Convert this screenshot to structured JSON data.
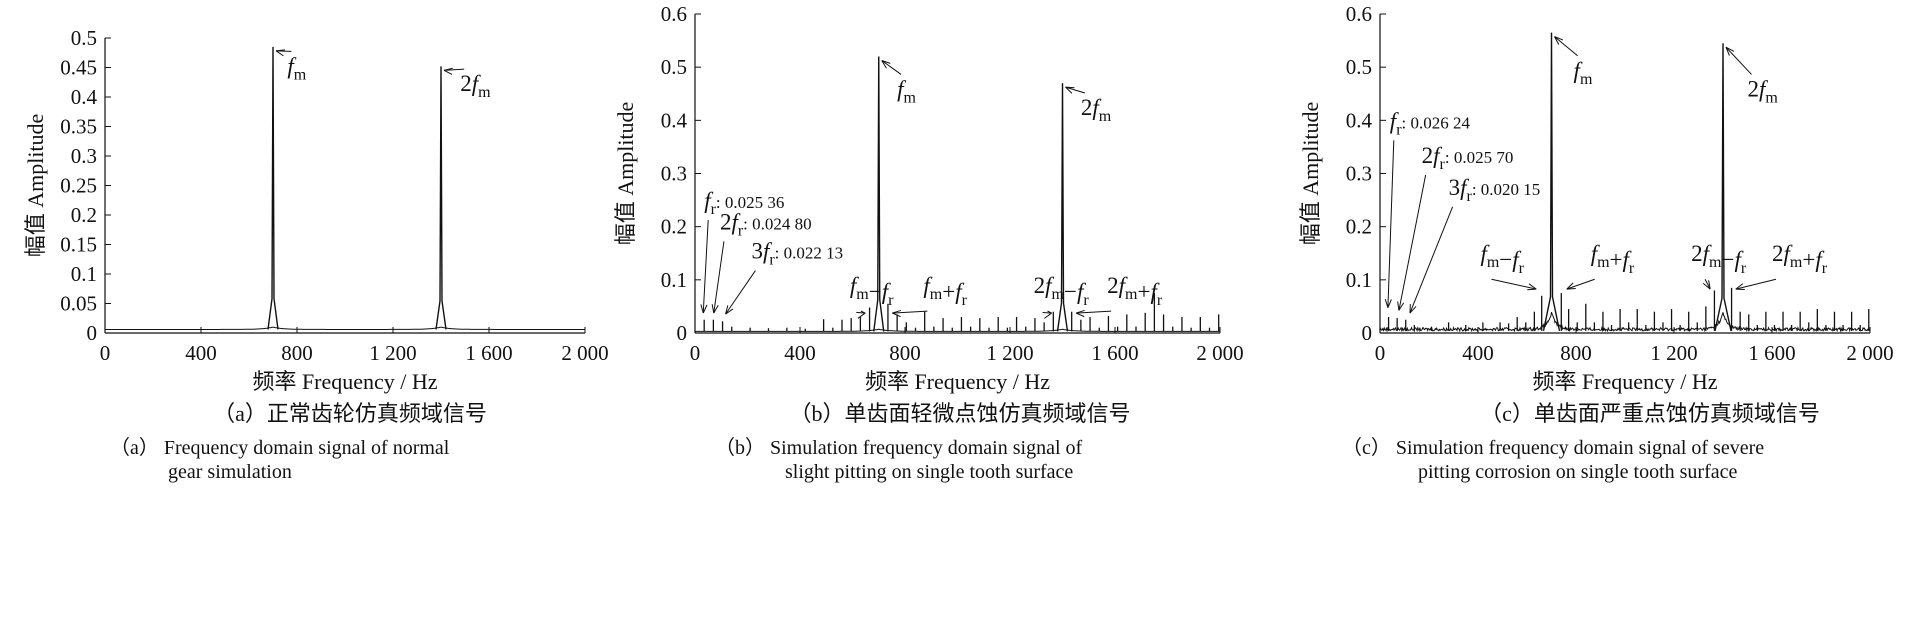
{
  "chart_data": [
    {
      "type": "line",
      "panel_label": "（a）",
      "caption_cn": "（a）正常齿轮仿真频域信号",
      "caption_en_line1": "（a） Frequency domain signal of normal",
      "caption_en_line2": "gear simulation",
      "xlabel": "频率 Frequency / Hz",
      "ylabel": "幅值 Amplitude",
      "xlim": [
        0,
        2000
      ],
      "ylim": [
        0,
        0.5
      ],
      "xticks": [
        0,
        400,
        800,
        1200,
        1600,
        2000
      ],
      "xtick_labels": [
        "0",
        "400",
        "800",
        "1 200",
        "1 600",
        "2 000"
      ],
      "yticks": [
        0,
        0.05,
        0.1,
        0.15,
        0.2,
        0.25,
        0.3,
        0.35,
        0.4,
        0.45,
        0.5
      ],
      "ytick_labels": [
        "0",
        "0.05",
        "0.1",
        "0.15",
        "0.2",
        "0.25",
        "0.3",
        "0.35",
        "0.4",
        "0.45",
        "0.5"
      ],
      "baseline": 0.006,
      "noise": 0.0,
      "main_peaks": [
        {
          "x": 700,
          "y": 0.485,
          "width": 5
        },
        {
          "x": 1400,
          "y": 0.452,
          "width": 5
        }
      ],
      "sidebands": [],
      "annotations": [
        {
          "text": "f",
          "sub": "m",
          "prefix": "",
          "value": "",
          "target_x": 700,
          "target_y": 0.485,
          "text_x": 760,
          "text_y": 0.44
        },
        {
          "text": "f",
          "sub": "m",
          "prefix": "2",
          "value": "",
          "target_x": 1400,
          "target_y": 0.452,
          "text_x": 1480,
          "text_y": 0.41
        }
      ]
    },
    {
      "type": "line",
      "panel_label": "（b）",
      "caption_cn": "（b）单齿面轻微点蚀仿真频域信号",
      "caption_en_line1": "（b） Simulation frequency domain signal of",
      "caption_en_line2": "slight pitting on single tooth surface",
      "xlabel": "频率 Frequency / Hz",
      "ylabel": "幅值 Amplitude",
      "xlim": [
        0,
        2000
      ],
      "ylim": [
        0,
        0.6
      ],
      "xticks": [
        0,
        400,
        800,
        1200,
        1600,
        2000
      ],
      "xtick_labels": [
        "0",
        "400",
        "800",
        "1 200",
        "1 600",
        "2 000"
      ],
      "yticks": [
        0,
        0.1,
        0.2,
        0.3,
        0.4,
        0.5,
        0.6
      ],
      "ytick_labels": [
        "0",
        "0.1",
        "0.2",
        "0.3",
        "0.4",
        "0.5",
        "0.6"
      ],
      "baseline": 0.003,
      "noise": 0.0,
      "main_peaks": [
        {
          "x": 700,
          "y": 0.52,
          "width": 5
        },
        {
          "x": 1400,
          "y": 0.47,
          "width": 5
        }
      ],
      "sidebands": [
        {
          "x": 35,
          "y": 0.025
        },
        {
          "x": 70,
          "y": 0.025
        },
        {
          "x": 105,
          "y": 0.022
        },
        {
          "x": 140,
          "y": 0.012
        },
        {
          "x": 210,
          "y": 0.01
        },
        {
          "x": 280,
          "y": 0.009
        },
        {
          "x": 350,
          "y": 0.01
        },
        {
          "x": 420,
          "y": 0.008
        },
        {
          "x": 490,
          "y": 0.026
        },
        {
          "x": 525,
          "y": 0.01
        },
        {
          "x": 560,
          "y": 0.025
        },
        {
          "x": 595,
          "y": 0.028
        },
        {
          "x": 630,
          "y": 0.03
        },
        {
          "x": 665,
          "y": 0.048
        },
        {
          "x": 735,
          "y": 0.055
        },
        {
          "x": 770,
          "y": 0.035
        },
        {
          "x": 805,
          "y": 0.02
        },
        {
          "x": 840,
          "y": 0.01
        },
        {
          "x": 875,
          "y": 0.04
        },
        {
          "x": 910,
          "y": 0.012
        },
        {
          "x": 945,
          "y": 0.028
        },
        {
          "x": 980,
          "y": 0.01
        },
        {
          "x": 1015,
          "y": 0.03
        },
        {
          "x": 1050,
          "y": 0.012
        },
        {
          "x": 1085,
          "y": 0.028
        },
        {
          "x": 1120,
          "y": 0.01
        },
        {
          "x": 1155,
          "y": 0.03
        },
        {
          "x": 1190,
          "y": 0.01
        },
        {
          "x": 1225,
          "y": 0.03
        },
        {
          "x": 1260,
          "y": 0.012
        },
        {
          "x": 1295,
          "y": 0.028
        },
        {
          "x": 1330,
          "y": 0.02
        },
        {
          "x": 1365,
          "y": 0.04
        },
        {
          "x": 1435,
          "y": 0.04
        },
        {
          "x": 1470,
          "y": 0.025
        },
        {
          "x": 1505,
          "y": 0.03
        },
        {
          "x": 1540,
          "y": 0.01
        },
        {
          "x": 1575,
          "y": 0.032
        },
        {
          "x": 1610,
          "y": 0.012
        },
        {
          "x": 1645,
          "y": 0.035
        },
        {
          "x": 1680,
          "y": 0.012
        },
        {
          "x": 1715,
          "y": 0.038
        },
        {
          "x": 1750,
          "y": 0.075
        },
        {
          "x": 1785,
          "y": 0.035
        },
        {
          "x": 1820,
          "y": 0.012
        },
        {
          "x": 1855,
          "y": 0.03
        },
        {
          "x": 1890,
          "y": 0.01
        },
        {
          "x": 1925,
          "y": 0.03
        },
        {
          "x": 1960,
          "y": 0.01
        },
        {
          "x": 1995,
          "y": 0.035
        }
      ],
      "annotations": [
        {
          "text": "f",
          "sub": "m",
          "prefix": "",
          "value": "",
          "target_x": 700,
          "target_y": 0.52,
          "text_x": 770,
          "text_y": 0.445
        },
        {
          "text": "f",
          "sub": "m",
          "prefix": "2",
          "value": "",
          "target_x": 1400,
          "target_y": 0.47,
          "text_x": 1470,
          "text_y": 0.41
        },
        {
          "text": "f",
          "sub": "r",
          "prefix": "",
          "value": ": 0.025 36",
          "target_x": 20,
          "target_y": 0.03,
          "text_x": 35,
          "text_y": 0.235
        },
        {
          "text": "f",
          "sub": "r",
          "prefix": "2",
          "value": ": 0.024 80",
          "target_x": 60,
          "target_y": 0.03,
          "text_x": 95,
          "text_y": 0.195
        },
        {
          "text": "f",
          "sub": "r",
          "prefix": "3",
          "value": ": 0.022 13",
          "target_x": 105,
          "target_y": 0.028,
          "text_x": 215,
          "text_y": 0.14
        },
        {
          "text": "",
          "sub": "",
          "prefix": "",
          "value": "",
          "label_parts": [
            [
              "f",
              "m"
            ],
            [
              "−f",
              "r"
            ]
          ],
          "target_x": 660,
          "target_y": 0.045,
          "text_x": 590,
          "text_y": 0.075
        },
        {
          "text": "",
          "sub": "",
          "prefix": "",
          "value": "",
          "label_parts": [
            [
              "f",
              "m"
            ],
            [
              "+f",
              "r"
            ]
          ],
          "target_x": 740,
          "target_y": 0.045,
          "text_x": 870,
          "text_y": 0.075
        },
        {
          "text": "",
          "sub": "",
          "prefix": "",
          "value": "",
          "label_parts": [
            [
              "2f",
              "m"
            ],
            [
              "−f",
              "r"
            ]
          ],
          "target_x": 1370,
          "target_y": 0.045,
          "text_x": 1290,
          "text_y": 0.075
        },
        {
          "text": "",
          "sub": "",
          "prefix": "",
          "value": "",
          "label_parts": [
            [
              "2f",
              "m"
            ],
            [
              "+f",
              "r"
            ]
          ],
          "target_x": 1440,
          "target_y": 0.045,
          "text_x": 1570,
          "text_y": 0.075
        }
      ]
    },
    {
      "type": "line",
      "panel_label": "（c）",
      "caption_cn": "（c）单齿面严重点蚀仿真频域信号",
      "caption_en_line1": "（c） Simulation frequency domain signal of severe",
      "caption_en_line2": "pitting corrosion on single tooth surface",
      "xlabel": "频率 Frequency / Hz",
      "ylabel": "幅值 Amplitude",
      "xlim": [
        0,
        2000
      ],
      "ylim": [
        0,
        0.6
      ],
      "xticks": [
        0,
        400,
        800,
        1200,
        1600,
        2000
      ],
      "xtick_labels": [
        "0",
        "400",
        "800",
        "1 200",
        "1 600",
        "2 000"
      ],
      "yticks": [
        0,
        0.1,
        0.2,
        0.3,
        0.4,
        0.5,
        0.6
      ],
      "ytick_labels": [
        "0",
        "0.1",
        "0.2",
        "0.3",
        "0.4",
        "0.5",
        "0.6"
      ],
      "baseline": 0.004,
      "noise": 0.006,
      "main_peaks": [
        {
          "x": 700,
          "y": 0.565,
          "width": 8
        },
        {
          "x": 1400,
          "y": 0.545,
          "width": 8
        }
      ],
      "sidebands": [
        {
          "x": 35,
          "y": 0.03
        },
        {
          "x": 70,
          "y": 0.028
        },
        {
          "x": 105,
          "y": 0.025
        },
        {
          "x": 140,
          "y": 0.015
        },
        {
          "x": 210,
          "y": 0.012
        },
        {
          "x": 280,
          "y": 0.02
        },
        {
          "x": 350,
          "y": 0.015
        },
        {
          "x": 420,
          "y": 0.02
        },
        {
          "x": 490,
          "y": 0.02
        },
        {
          "x": 525,
          "y": 0.018
        },
        {
          "x": 560,
          "y": 0.03
        },
        {
          "x": 595,
          "y": 0.02
        },
        {
          "x": 630,
          "y": 0.04
        },
        {
          "x": 660,
          "y": 0.07
        },
        {
          "x": 740,
          "y": 0.075
        },
        {
          "x": 770,
          "y": 0.045
        },
        {
          "x": 805,
          "y": 0.02
        },
        {
          "x": 840,
          "y": 0.055
        },
        {
          "x": 875,
          "y": 0.02
        },
        {
          "x": 910,
          "y": 0.04
        },
        {
          "x": 945,
          "y": 0.015
        },
        {
          "x": 980,
          "y": 0.045
        },
        {
          "x": 1015,
          "y": 0.02
        },
        {
          "x": 1050,
          "y": 0.045
        },
        {
          "x": 1085,
          "y": 0.015
        },
        {
          "x": 1120,
          "y": 0.04
        },
        {
          "x": 1155,
          "y": 0.02
        },
        {
          "x": 1190,
          "y": 0.045
        },
        {
          "x": 1225,
          "y": 0.015
        },
        {
          "x": 1260,
          "y": 0.04
        },
        {
          "x": 1295,
          "y": 0.02
        },
        {
          "x": 1330,
          "y": 0.05
        },
        {
          "x": 1365,
          "y": 0.08
        },
        {
          "x": 1435,
          "y": 0.085
        },
        {
          "x": 1470,
          "y": 0.04
        },
        {
          "x": 1505,
          "y": 0.035
        },
        {
          "x": 1540,
          "y": 0.015
        },
        {
          "x": 1575,
          "y": 0.04
        },
        {
          "x": 1610,
          "y": 0.015
        },
        {
          "x": 1645,
          "y": 0.04
        },
        {
          "x": 1680,
          "y": 0.015
        },
        {
          "x": 1715,
          "y": 0.04
        },
        {
          "x": 1750,
          "y": 0.02
        },
        {
          "x": 1785,
          "y": 0.045
        },
        {
          "x": 1820,
          "y": 0.015
        },
        {
          "x": 1855,
          "y": 0.04
        },
        {
          "x": 1890,
          "y": 0.015
        },
        {
          "x": 1925,
          "y": 0.04
        },
        {
          "x": 1960,
          "y": 0.015
        },
        {
          "x": 1995,
          "y": 0.045
        }
      ],
      "annotations": [
        {
          "text": "f",
          "sub": "m",
          "prefix": "",
          "value": "",
          "target_x": 700,
          "target_y": 0.565,
          "text_x": 790,
          "text_y": 0.48
        },
        {
          "text": "f",
          "sub": "m",
          "prefix": "2",
          "value": "",
          "target_x": 1400,
          "target_y": 0.545,
          "text_x": 1500,
          "text_y": 0.445
        },
        {
          "text": "f",
          "sub": "r",
          "prefix": "",
          "value": ": 0.026 24",
          "target_x": 20,
          "target_y": 0.04,
          "text_x": 40,
          "text_y": 0.385
        },
        {
          "text": "f",
          "sub": "r",
          "prefix": "2",
          "value": ": 0.025 70",
          "target_x": 65,
          "target_y": 0.035,
          "text_x": 170,
          "text_y": 0.32
        },
        {
          "text": "f",
          "sub": "r",
          "prefix": "3",
          "value": ": 0.020 15",
          "target_x": 110,
          "target_y": 0.03,
          "text_x": 280,
          "text_y": 0.26
        },
        {
          "text": "",
          "sub": "",
          "prefix": "",
          "value": "",
          "label_parts": [
            [
              "f",
              "m"
            ],
            [
              "−f",
              "r"
            ]
          ],
          "target_x": 650,
          "target_y": 0.075,
          "text_x": 410,
          "text_y": 0.135
        },
        {
          "text": "",
          "sub": "",
          "prefix": "",
          "value": "",
          "label_parts": [
            [
              "f",
              "m"
            ],
            [
              "+f",
              "r"
            ]
          ],
          "target_x": 750,
          "target_y": 0.075,
          "text_x": 860,
          "text_y": 0.135
        },
        {
          "text": "",
          "sub": "",
          "prefix": "",
          "value": "",
          "label_parts": [
            [
              "2f",
              "m"
            ],
            [
              "−f",
              "r"
            ]
          ],
          "target_x": 1360,
          "target_y": 0.075,
          "text_x": 1270,
          "text_y": 0.135
        },
        {
          "text": "",
          "sub": "",
          "prefix": "",
          "value": "",
          "label_parts": [
            [
              "2f",
              "m"
            ],
            [
              "+f",
              "r"
            ]
          ],
          "target_x": 1440,
          "target_y": 0.075,
          "text_x": 1600,
          "text_y": 0.135
        }
      ]
    }
  ]
}
